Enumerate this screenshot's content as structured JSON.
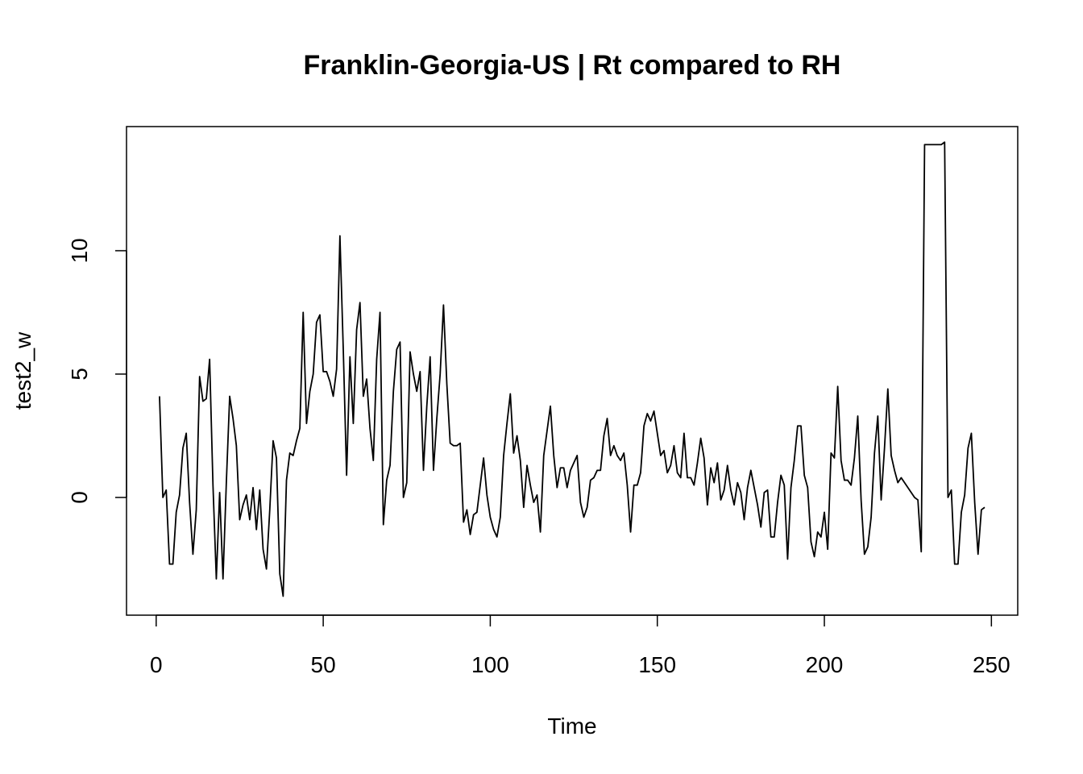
{
  "chart_data": {
    "type": "line",
    "title": "Franklin-Georgia-US | Rt compared to RH",
    "x_label": "Time",
    "y_label": "test2_w",
    "color": "#000000",
    "x": [
      1,
      2,
      3,
      4,
      5,
      6,
      7,
      8,
      9,
      10,
      11,
      12,
      13,
      14,
      15,
      16,
      17,
      18,
      19,
      20,
      21,
      22,
      23,
      24,
      25,
      26,
      27,
      28,
      29,
      30,
      31,
      32,
      33,
      34,
      35,
      36,
      37,
      38,
      39,
      40,
      41,
      42,
      43,
      44,
      45,
      46,
      47,
      48,
      49,
      50,
      51,
      52,
      53,
      54,
      55,
      56,
      57,
      58,
      59,
      60,
      61,
      62,
      63,
      64,
      65,
      66,
      67,
      68,
      69,
      70,
      71,
      72,
      73,
      74,
      75,
      76,
      77,
      78,
      79,
      80,
      81,
      82,
      83,
      84,
      85,
      86,
      87,
      88,
      89,
      90,
      91,
      92,
      93,
      94,
      95,
      96,
      97,
      98,
      99,
      100,
      101,
      102,
      103,
      104,
      105,
      106,
      107,
      108,
      109,
      110,
      111,
      112,
      113,
      114,
      115,
      116,
      117,
      118,
      119,
      120,
      121,
      122,
      123,
      124,
      125,
      126,
      127,
      128,
      129,
      130,
      131,
      132,
      133,
      134,
      135,
      136,
      137,
      138,
      139,
      140,
      141,
      142,
      143,
      144,
      145,
      146,
      147,
      148,
      149,
      150,
      151,
      152,
      153,
      154,
      155,
      156,
      157,
      158,
      159,
      160,
      161,
      162,
      163,
      164,
      165,
      166,
      167,
      168,
      169,
      170,
      171,
      172,
      173,
      174,
      175,
      176,
      177,
      178,
      179,
      180,
      181,
      182,
      183,
      184,
      185,
      186,
      187,
      188,
      189,
      190,
      191,
      192,
      193,
      194,
      195,
      196,
      197,
      198,
      199,
      200,
      201,
      202,
      203,
      204,
      205,
      206,
      207,
      208,
      209,
      210,
      211,
      212,
      213,
      214,
      215,
      216,
      217,
      218,
      219,
      220,
      221,
      222,
      223,
      224,
      225,
      226,
      227,
      228,
      229,
      230,
      231,
      232,
      233,
      234,
      235,
      236,
      237,
      238,
      239,
      240,
      241,
      242,
      243,
      244,
      245,
      246,
      247,
      248
    ],
    "values": [
      4.1,
      0.0,
      0.3,
      -2.7,
      -2.7,
      -0.6,
      0.1,
      2.0,
      2.6,
      -0.2,
      -2.3,
      -0.5,
      4.9,
      3.9,
      4.0,
      5.6,
      0.5,
      -3.3,
      0.2,
      -3.3,
      0.6,
      4.1,
      3.2,
      2.1,
      -0.9,
      -0.3,
      0.1,
      -0.9,
      0.4,
      -1.3,
      0.3,
      -2.1,
      -2.9,
      -0.5,
      2.3,
      1.6,
      -3.1,
      -4.0,
      0.7,
      1.8,
      1.7,
      2.3,
      2.8,
      7.5,
      3.0,
      4.3,
      5.0,
      7.1,
      7.4,
      5.1,
      5.1,
      4.7,
      4.1,
      5.2,
      10.6,
      6.0,
      0.9,
      5.7,
      3.0,
      6.8,
      7.9,
      4.1,
      4.8,
      2.8,
      1.5,
      5.6,
      7.5,
      -1.1,
      0.7,
      1.3,
      4.3,
      6.0,
      6.3,
      0.0,
      0.6,
      5.9,
      5.0,
      4.3,
      5.1,
      1.1,
      3.7,
      5.7,
      1.1,
      3.2,
      5.0,
      7.8,
      4.6,
      2.2,
      2.1,
      2.1,
      2.2,
      -1.0,
      -0.5,
      -1.5,
      -0.7,
      -0.6,
      0.5,
      1.6,
      0.1,
      -0.8,
      -1.3,
      -1.6,
      -0.8,
      1.7,
      3.0,
      4.2,
      1.8,
      2.5,
      1.5,
      -0.4,
      1.3,
      0.5,
      -0.2,
      0.1,
      -1.4,
      1.7,
      2.7,
      3.7,
      1.7,
      0.4,
      1.2,
      1.2,
      0.4,
      1.1,
      1.4,
      1.7,
      -0.2,
      -0.8,
      -0.4,
      0.7,
      0.8,
      1.1,
      1.1,
      2.5,
      3.2,
      1.7,
      2.1,
      1.7,
      1.5,
      1.8,
      0.5,
      -1.4,
      0.5,
      0.5,
      1.0,
      2.9,
      3.4,
      3.1,
      3.5,
      2.6,
      1.7,
      1.9,
      1.0,
      1.3,
      2.1,
      1.0,
      0.8,
      2.6,
      0.8,
      0.8,
      0.5,
      1.4,
      2.4,
      1.6,
      -0.3,
      1.2,
      0.6,
      1.4,
      -0.1,
      0.3,
      1.3,
      0.3,
      -0.3,
      0.6,
      0.2,
      -0.9,
      0.4,
      1.1,
      0.4,
      -0.3,
      -1.2,
      0.2,
      0.3,
      -1.6,
      -1.6,
      -0.2,
      0.9,
      0.5,
      -2.5,
      0.4,
      1.5,
      2.9,
      2.9,
      0.9,
      0.4,
      -1.8,
      -2.4,
      -1.4,
      -1.6,
      -0.6,
      -2.1,
      1.8,
      1.6,
      4.5,
      1.5,
      0.7,
      0.7,
      0.5,
      1.6,
      3.3,
      -0.1,
      -2.3,
      -2.0,
      -0.8,
      1.8,
      3.3,
      -0.1,
      2.0,
      4.4,
      1.7,
      1.1,
      0.6,
      0.8,
      0.6,
      0.4,
      0.2,
      0.0,
      -0.1,
      -2.2,
      14.3,
      14.3,
      14.3,
      14.3,
      14.3,
      14.3,
      14.4,
      0.0,
      0.3,
      -2.7,
      -2.7,
      -0.6,
      0.1,
      2.0,
      2.6,
      -0.2,
      -2.3,
      -0.5,
      -0.4
    ],
    "xlim": [
      -8.88,
      257.88
    ],
    "xticks": [
      0,
      50,
      100,
      150,
      200,
      250
    ],
    "ylim": [
      -4.77,
      15.03
    ],
    "yticks": [
      0,
      5,
      10
    ]
  }
}
